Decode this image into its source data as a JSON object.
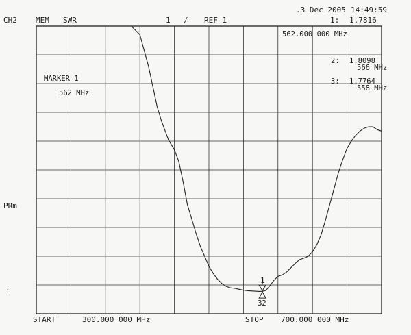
{
  "header": {
    "channel": "CH2",
    "mem": "MEM",
    "format": "SWR",
    "scale": "1",
    "scale_unit": "/",
    "ref": "REF 1",
    "date": ".3 Dec 2005",
    "time": "14:49:59"
  },
  "markers": {
    "m1_label": "1:",
    "m1_value": "1.7816",
    "m1_freq": "562.000 000 MHz",
    "m2_label": "2:",
    "m2_value": "1.8098",
    "m2_freq": "566 MHz",
    "m3_label": "3:",
    "m3_value": "1.7764",
    "m3_freq": "558 MHz",
    "active_label": "MARKER 1",
    "active_freq": "562 MHz",
    "glyph_1": "1",
    "glyph_32": "32"
  },
  "side": {
    "prm": "PRm",
    "ref_arrow": "↑"
  },
  "footer": {
    "start": "START",
    "start_value": "300.000 000 MHz",
    "stop": "STOP",
    "stop_value": "700.000 000 MHz"
  },
  "chart_data": {
    "type": "line",
    "x_unit": "MHz",
    "y_unit": "SWR",
    "xlim": [
      300,
      700
    ],
    "ylim": [
      1,
      11
    ],
    "grid": true,
    "x": [
      300,
      305,
      410,
      420,
      430,
      440,
      445,
      450,
      453,
      456,
      460,
      465,
      470,
      475,
      480,
      485,
      490,
      495,
      500,
      505,
      510,
      515,
      520,
      525,
      530,
      535,
      540,
      545,
      550,
      555,
      558,
      562,
      566,
      570,
      575,
      580,
      585,
      590,
      595,
      600,
      605,
      610,
      615,
      620,
      625,
      630,
      635,
      640,
      645,
      650,
      655,
      660,
      665,
      670,
      675,
      680,
      685,
      690,
      695,
      700
    ],
    "y": [
      11,
      11,
      11,
      10.7,
      9.6,
      8.2,
      7.7,
      7.3,
      7.05,
      6.9,
      6.7,
      6.3,
      5.6,
      4.8,
      4.3,
      3.8,
      3.35,
      3.0,
      2.65,
      2.4,
      2.2,
      2.05,
      1.95,
      1.9,
      1.88,
      1.85,
      1.82,
      1.8,
      1.79,
      1.78,
      1.7764,
      1.7816,
      1.8098,
      1.95,
      2.15,
      2.3,
      2.35,
      2.45,
      2.6,
      2.75,
      2.88,
      2.93,
      3.0,
      3.15,
      3.4,
      3.75,
      4.25,
      4.8,
      5.35,
      5.9,
      6.35,
      6.75,
      7.0,
      7.2,
      7.35,
      7.45,
      7.5,
      7.5,
      7.4,
      7.35
    ],
    "markers": [
      {
        "label": "1",
        "x": 562,
        "y": 1.7816
      },
      {
        "label": "2",
        "x": 566,
        "y": 1.8098
      },
      {
        "label": "3",
        "x": 558,
        "y": 1.7764
      }
    ]
  }
}
